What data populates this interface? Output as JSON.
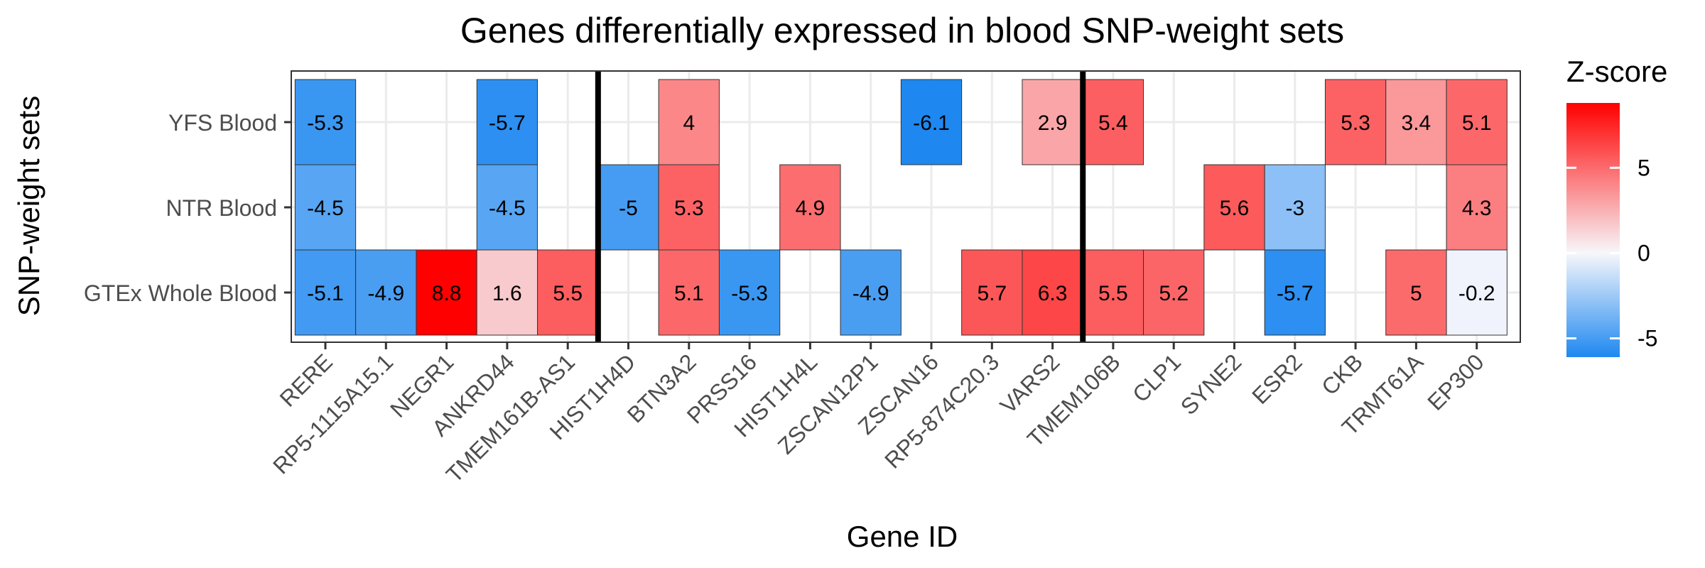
{
  "chart_data": {
    "type": "heatmap",
    "title": "Genes differentially expressed in blood SNP-weight sets",
    "xlabel": "Gene ID",
    "ylabel": "SNP-weight sets",
    "x_categories": [
      "RERE",
      "RP5-1115A15.1",
      "NEGR1",
      "ANKRD44",
      "TMEM161B-AS1",
      "HIST1H4D",
      "BTN3A2",
      "PRSS16",
      "HIST1H4L",
      "ZSCAN12P1",
      "ZSCAN16",
      "RP5-874C20.3",
      "VARS2",
      "TMEM106B",
      "CLP1",
      "SYNE2",
      "ESR2",
      "CKB",
      "TRMT61A",
      "EP300"
    ],
    "y_categories": [
      "YFS Blood",
      "NTR Blood",
      "GTEx Whole Blood"
    ],
    "rows": [
      {
        "name": "YFS Blood",
        "values": [
          -5.3,
          null,
          null,
          -5.7,
          null,
          null,
          4,
          null,
          null,
          null,
          -6.1,
          null,
          2.9,
          5.4,
          null,
          null,
          null,
          5.3,
          3.4,
          5.1
        ]
      },
      {
        "name": "NTR Blood",
        "values": [
          -4.5,
          null,
          null,
          -4.5,
          null,
          -5,
          5.3,
          null,
          4.9,
          null,
          null,
          null,
          null,
          null,
          null,
          5.6,
          -3,
          null,
          null,
          4.3
        ]
      },
      {
        "name": "GTEx Whole Blood",
        "values": [
          -5.1,
          -4.9,
          8.8,
          1.6,
          5.5,
          null,
          5.1,
          -5.3,
          null,
          -4.9,
          null,
          5.7,
          6.3,
          5.5,
          5.2,
          null,
          -5.7,
          null,
          5,
          -0.2
        ]
      }
    ],
    "value_labels": [
      [
        "-5.3",
        "",
        "",
        "-5.7",
        "",
        "",
        "4",
        "",
        "",
        "",
        "-6.1",
        "",
        "2.9",
        "5.4",
        "",
        "",
        "",
        "5.3",
        "3.4",
        "5.1"
      ],
      [
        "-4.5",
        "",
        "",
        "-4.5",
        "",
        "-5",
        "5.3",
        "",
        "4.9",
        "",
        "",
        "",
        "",
        "",
        "",
        "5.6",
        "-3",
        "",
        "",
        "4.3"
      ],
      [
        "-5.1",
        "-4.9",
        "8.8",
        "1.6",
        "5.5",
        "",
        "5.1",
        "-5.3",
        "",
        "-4.9",
        "",
        "5.7",
        "6.3",
        "5.5",
        "5.2",
        "",
        "-5.7",
        "",
        "5",
        "-0.2"
      ]
    ],
    "separators_after": [
      "TMEM161B-AS1",
      "VARS2"
    ],
    "legend": {
      "title": "Z-score",
      "ticks": [
        5,
        0,
        -5
      ],
      "tick_labels": [
        "5",
        "0",
        "-5"
      ],
      "range": [
        -6.1,
        8.8
      ],
      "low_color": "#1e88f0",
      "mid_color": "#f7f7fb",
      "high_color": "#ff0000",
      "placement": "right"
    },
    "grid": true
  }
}
